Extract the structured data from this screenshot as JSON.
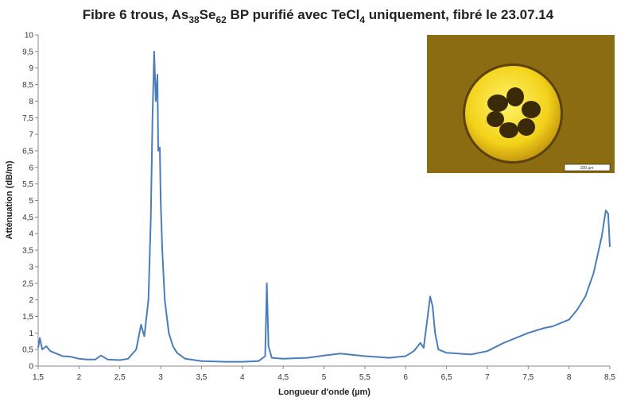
{
  "chart_data": {
    "type": "line",
    "title_parts": [
      "Fibre 6 trous, As",
      "38",
      "Se",
      "62",
      " BP purifié avec TeCl",
      "4",
      " uniquement, fibré le 23.07.14"
    ],
    "x_label": "Longueur d'onde (µm)",
    "y_label": "Atténuation (dB/m)",
    "inset_scale_label": "100 µm",
    "xlim": [
      1.5,
      8.5
    ],
    "ylim": [
      0,
      10
    ],
    "xticks": [
      {
        "value": 1.5,
        "label": "1,5"
      },
      2,
      {
        "value": 2.5,
        "label": "2,5"
      },
      3,
      {
        "value": 3.5,
        "label": "3,5"
      },
      4,
      {
        "value": 4.5,
        "label": "4,5"
      },
      5,
      {
        "value": 5.5,
        "label": "5,5"
      },
      6,
      {
        "value": 6.5,
        "label": "6,5"
      },
      7,
      {
        "value": 7.5,
        "label": "7,5"
      },
      8,
      {
        "value": 8.5,
        "label": "8,5"
      }
    ],
    "yticks": [
      0,
      {
        "value": 0.5,
        "label": "0,5"
      },
      1,
      {
        "value": 1.5,
        "label": "1,5"
      },
      2,
      {
        "value": 2.5,
        "label": "2,5"
      },
      3,
      {
        "value": 3.5,
        "label": "3,5"
      },
      4,
      {
        "value": 4.5,
        "label": "4,5"
      },
      5,
      {
        "value": 5.5,
        "label": "5,5"
      },
      6,
      {
        "value": 6.5,
        "label": "6,5"
      },
      7,
      {
        "value": 7.5,
        "label": "7,5"
      },
      8,
      {
        "value": 8.5,
        "label": "8,5"
      },
      9,
      {
        "value": 9.5,
        "label": "9,5"
      },
      10
    ],
    "grid": false,
    "series": [
      {
        "color": "#4a7ebb",
        "x": [
          1.5,
          1.52,
          1.55,
          1.6,
          1.65,
          1.7,
          1.75,
          1.8,
          1.9,
          2.0,
          2.1,
          2.2,
          2.27,
          2.35,
          2.5,
          2.6,
          2.7,
          2.76,
          2.8,
          2.85,
          2.88,
          2.9,
          2.92,
          2.94,
          2.96,
          2.97,
          2.99,
          3.0,
          3.02,
          3.05,
          3.1,
          3.15,
          3.2,
          3.3,
          3.5,
          3.8,
          4.0,
          4.2,
          4.28,
          4.3,
          4.32,
          4.36,
          4.5,
          4.8,
          5.0,
          5.2,
          5.5,
          5.8,
          6.0,
          6.1,
          6.18,
          6.22,
          6.27,
          6.3,
          6.33,
          6.36,
          6.4,
          6.5,
          6.8,
          7.0,
          7.2,
          7.5,
          7.7,
          7.8,
          8.0,
          8.1,
          8.2,
          8.3,
          8.4,
          8.45,
          8.48,
          8.5
        ],
        "values": [
          0.55,
          0.85,
          0.5,
          0.6,
          0.45,
          0.4,
          0.35,
          0.3,
          0.28,
          0.22,
          0.2,
          0.2,
          0.32,
          0.2,
          0.18,
          0.22,
          0.5,
          1.25,
          0.9,
          2.0,
          4.5,
          7.5,
          9.5,
          8.0,
          8.8,
          6.5,
          6.6,
          5.0,
          3.5,
          2.0,
          1.0,
          0.6,
          0.4,
          0.22,
          0.15,
          0.13,
          0.13,
          0.15,
          0.3,
          2.5,
          0.6,
          0.25,
          0.22,
          0.25,
          0.32,
          0.38,
          0.3,
          0.25,
          0.3,
          0.45,
          0.7,
          0.55,
          1.5,
          2.1,
          1.8,
          1.0,
          0.5,
          0.4,
          0.35,
          0.45,
          0.7,
          1.0,
          1.15,
          1.2,
          1.4,
          1.7,
          2.1,
          2.8,
          3.9,
          4.7,
          4.6,
          3.6
        ]
      }
    ]
  }
}
